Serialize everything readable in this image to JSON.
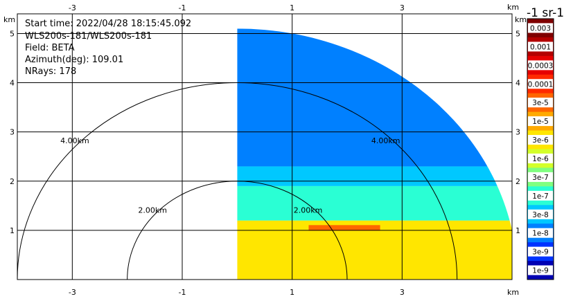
{
  "info": {
    "start_time": "Start time: 2022/04/28 18:15:45.092",
    "instrument": "WLS200s-181/WLS200s-181",
    "field": "Field: BETA",
    "azimuth": "Azimuth(deg): 109.01",
    "nrays": "NRays: 178"
  },
  "colorbar": {
    "title": "-1 sr-1",
    "labels": [
      "0.003",
      "0.001",
      "0.0003",
      "0.0001",
      "3e-5",
      "1e-5",
      "3e-6",
      "1e-6",
      "3e-7",
      "1e-7",
      "3e-8",
      "1e-8",
      "3e-9",
      "1e-9"
    ],
    "colors": [
      "#7f0000",
      "#b30000",
      "#e60000",
      "#ff2a00",
      "#ff6600",
      "#ffaa00",
      "#ffe600",
      "#d4ff2a",
      "#80ff80",
      "#2affd4",
      "#00c8ff",
      "#0080ff",
      "#0033ff",
      "#0000b3"
    ]
  },
  "chart_data": {
    "type": "heatmap",
    "xlabel": "km",
    "ylabel": "km",
    "xlim": [
      -4.0,
      5.0
    ],
    "ylim": [
      0.0,
      5.4
    ],
    "x_ticks": [
      -3,
      -1,
      1,
      3
    ],
    "y_ticks": [
      1,
      2,
      3,
      4,
      5
    ],
    "range_rings": [
      {
        "radius_km": 2.0,
        "label": "2.00km",
        "center": [
          0.0,
          0.0
        ]
      },
      {
        "radius_km": 4.0,
        "label": "4.00km",
        "center": [
          0.0,
          0.0
        ]
      }
    ],
    "sector": {
      "center": [
        0.0,
        0.0
      ],
      "x_min": 0.0,
      "max_range_km": 5.1
    },
    "bands": [
      {
        "y_min": 0.0,
        "y_max": 1.2,
        "value": "3e-6"
      },
      {
        "y_min": 1.2,
        "y_max": 1.9,
        "value": "1e-7"
      },
      {
        "y_min": 1.9,
        "y_max": 2.3,
        "value": "3e-8"
      },
      {
        "y_min": 2.3,
        "y_max": 5.1,
        "value": "1e-8"
      }
    ],
    "high_echo_layer": {
      "x_range": [
        1.3,
        2.6
      ],
      "y": 1.05,
      "value": "3e-5"
    },
    "colorbar_labels": [
      "0.003",
      "0.001",
      "0.0003",
      "0.0001",
      "3e-5",
      "1e-5",
      "3e-6",
      "1e-6",
      "3e-7",
      "1e-7",
      "3e-8",
      "1e-8",
      "3e-9",
      "1e-9"
    ]
  }
}
